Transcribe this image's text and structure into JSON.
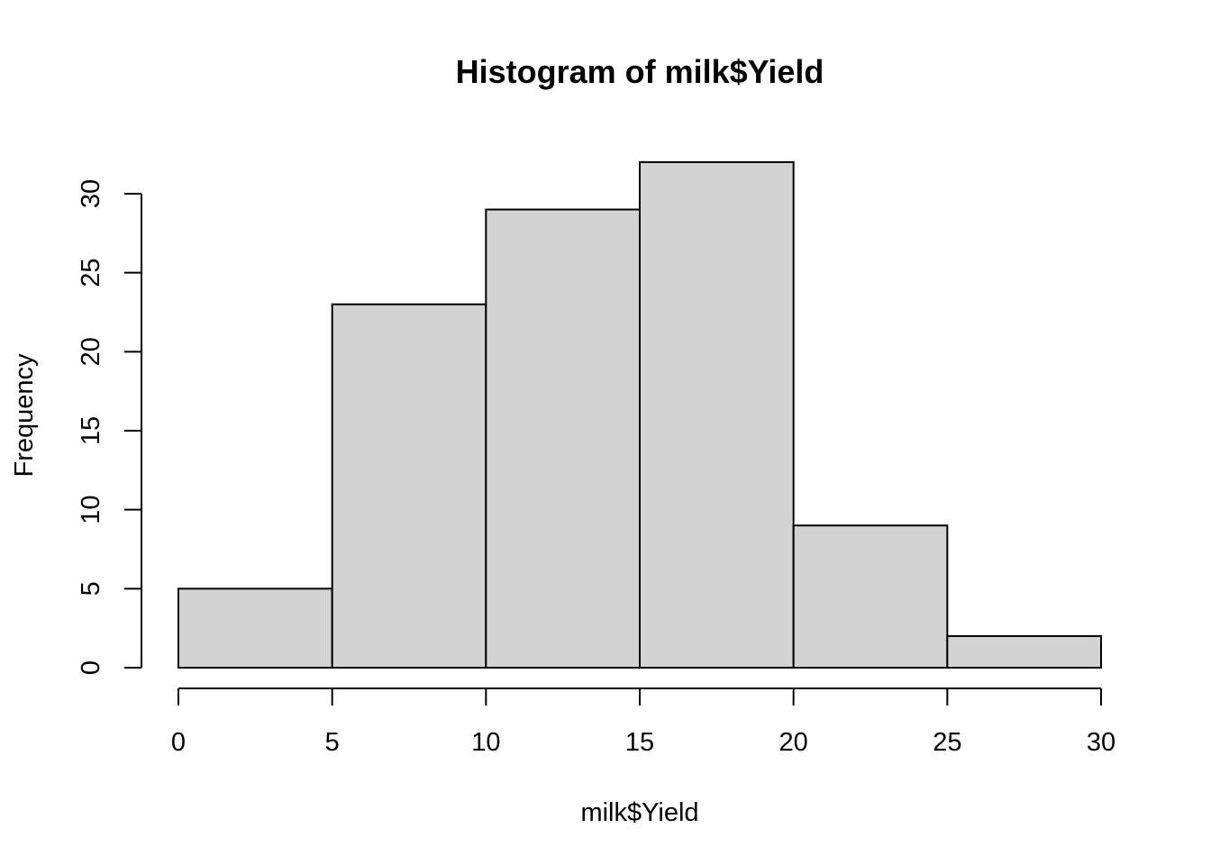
{
  "chart_data": {
    "type": "bar",
    "subtype": "histogram",
    "title": "Histogram of milk$Yield",
    "xlabel": "milk$Yield",
    "ylabel": "Frequency",
    "bins": [
      {
        "from": 0,
        "to": 5,
        "count": 5
      },
      {
        "from": 5,
        "to": 10,
        "count": 23
      },
      {
        "from": 10,
        "to": 15,
        "count": 29
      },
      {
        "from": 15,
        "to": 20,
        "count": 32
      },
      {
        "from": 20,
        "to": 25,
        "count": 9
      },
      {
        "from": 25,
        "to": 30,
        "count": 2
      }
    ],
    "xlim": [
      0,
      30
    ],
    "ylim": [
      0,
      32
    ],
    "x_ticks": [
      "0",
      "5",
      "10",
      "15",
      "20",
      "25",
      "30"
    ],
    "y_ticks": [
      "0",
      "5",
      "10",
      "15",
      "20",
      "25",
      "30"
    ],
    "bar_fill": "#d3d3d3",
    "bar_stroke": "#000000",
    "grid": false,
    "legend": "none"
  }
}
